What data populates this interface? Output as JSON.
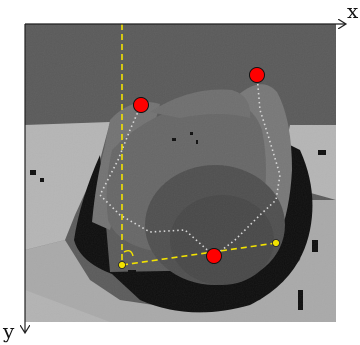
{
  "axes": {
    "x_label": "x",
    "y_label": "y",
    "axis_color": "#222222"
  },
  "depth_palette": {
    "far_background": "#5a5a5a",
    "floor": "#a9a9a9",
    "wall_lower": "#b5b5b5",
    "body": "#646464",
    "shoulder": "#6a6a6a",
    "arms": "#747474",
    "head": "#4e4e4e",
    "shadow": "#0c0c0c"
  },
  "skeleton": {
    "joint_color": "#ff0000",
    "bone_color": "#d8d8d8",
    "joint_count": 3
  },
  "annotation": {
    "line_color": "#f2e200",
    "style": "dashed",
    "shows_right_angle_marker": true
  }
}
